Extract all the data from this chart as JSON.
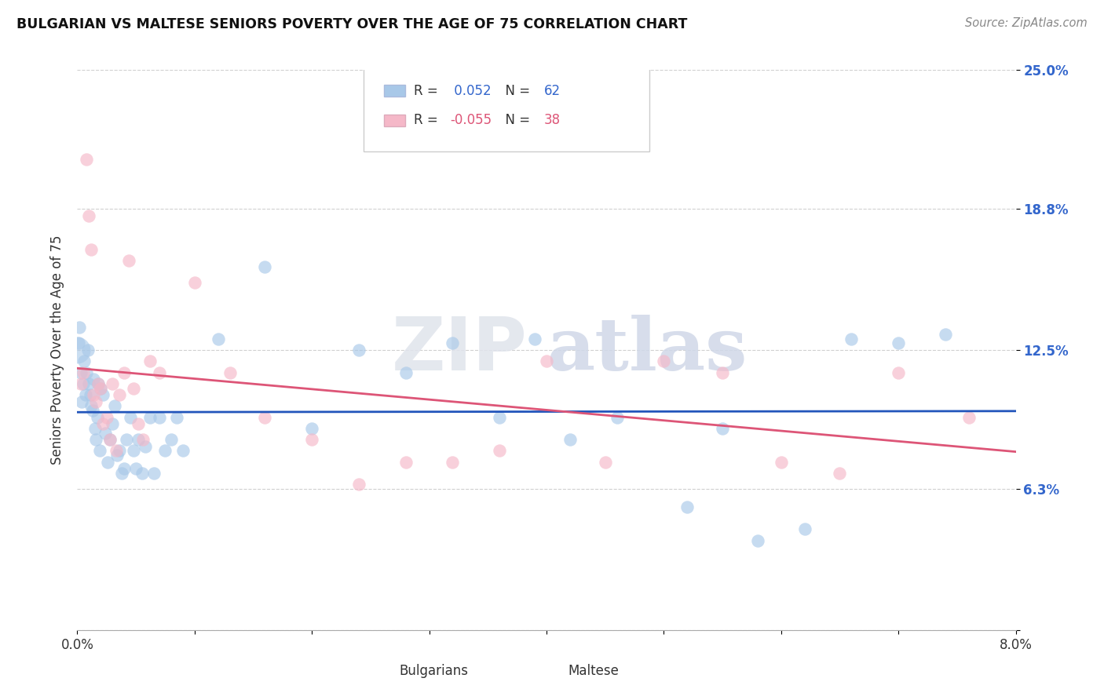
{
  "title": "BULGARIAN VS MALTESE SENIORS POVERTY OVER THE AGE OF 75 CORRELATION CHART",
  "source": "Source: ZipAtlas.com",
  "ylabel": "Seniors Poverty Over the Age of 75",
  "xlim": [
    0.0,
    8.0
  ],
  "ylim": [
    0.0,
    25.0
  ],
  "xticks": [
    0.0,
    1.0,
    2.0,
    3.0,
    4.0,
    5.0,
    6.0,
    7.0,
    8.0
  ],
  "xtick_labels": [
    "0.0%",
    "",
    "",
    "",
    "",
    "",
    "",
    "",
    "8.0%"
  ],
  "yticks": [
    0.0,
    6.3,
    12.5,
    18.8,
    25.0
  ],
  "ytick_labels": [
    "",
    "6.3%",
    "12.5%",
    "18.8%",
    "25.0%"
  ],
  "bg_color": "#ffffff",
  "grid_color": "#d0d0d0",
  "watermark_zip": "ZIP",
  "watermark_atlas": "atlas",
  "legend_bulgarian_r": " 0.052",
  "legend_bulgarian_n": "62",
  "legend_maltese_r": "-0.055",
  "legend_maltese_n": "38",
  "bulgarian_color": "#a8c8e8",
  "maltese_color": "#f5b8c8",
  "trend_bulgarian_color": "#2255bb",
  "trend_maltese_color": "#dd5577",
  "bulgarian_x": [
    0.01,
    0.02,
    0.03,
    0.04,
    0.05,
    0.06,
    0.07,
    0.08,
    0.09,
    0.1,
    0.11,
    0.12,
    0.13,
    0.14,
    0.15,
    0.16,
    0.17,
    0.18,
    0.19,
    0.2,
    0.22,
    0.24,
    0.26,
    0.28,
    0.3,
    0.32,
    0.34,
    0.36,
    0.38,
    0.4,
    0.42,
    0.45,
    0.48,
    0.5,
    0.52,
    0.55,
    0.58,
    0.62,
    0.65,
    0.7,
    0.75,
    0.8,
    0.85,
    0.9,
    1.2,
    1.6,
    2.0,
    2.4,
    2.8,
    3.2,
    3.6,
    3.9,
    4.2,
    4.6,
    5.2,
    5.5,
    5.8,
    6.2,
    6.6,
    7.0,
    7.4
  ],
  "bulgarian_y": [
    12.8,
    13.5,
    11.5,
    10.2,
    11.0,
    12.0,
    10.5,
    11.5,
    12.5,
    11.0,
    10.5,
    10.0,
    9.8,
    11.2,
    9.0,
    8.5,
    9.5,
    11.0,
    8.0,
    10.8,
    10.5,
    8.8,
    7.5,
    8.5,
    9.2,
    10.0,
    7.8,
    8.0,
    7.0,
    7.2,
    8.5,
    9.5,
    8.0,
    7.2,
    8.5,
    7.0,
    8.2,
    9.5,
    7.0,
    9.5,
    8.0,
    8.5,
    9.5,
    8.0,
    13.0,
    16.2,
    9.0,
    12.5,
    11.5,
    12.8,
    9.5,
    13.0,
    8.5,
    9.5,
    5.5,
    9.0,
    4.0,
    4.5,
    13.0,
    12.8,
    13.2
  ],
  "maltese_x": [
    0.03,
    0.05,
    0.08,
    0.1,
    0.12,
    0.14,
    0.16,
    0.18,
    0.2,
    0.22,
    0.25,
    0.28,
    0.3,
    0.33,
    0.36,
    0.4,
    0.44,
    0.48,
    0.52,
    0.56,
    0.62,
    0.7,
    1.0,
    1.3,
    1.6,
    2.0,
    2.4,
    2.8,
    3.2,
    3.6,
    4.0,
    4.5,
    5.0,
    5.5,
    6.0,
    6.5,
    7.0,
    7.6
  ],
  "maltese_y": [
    11.0,
    11.5,
    21.0,
    18.5,
    17.0,
    10.5,
    10.2,
    11.0,
    10.8,
    9.2,
    9.5,
    8.5,
    11.0,
    8.0,
    10.5,
    11.5,
    16.5,
    10.8,
    9.2,
    8.5,
    12.0,
    11.5,
    15.5,
    11.5,
    9.5,
    8.5,
    6.5,
    7.5,
    7.5,
    8.0,
    12.0,
    7.5,
    12.0,
    11.5,
    7.5,
    7.0,
    11.5,
    9.5
  ],
  "large_blue_x": 0.0,
  "large_blue_y": 12.5,
  "large_blue_size": 600
}
